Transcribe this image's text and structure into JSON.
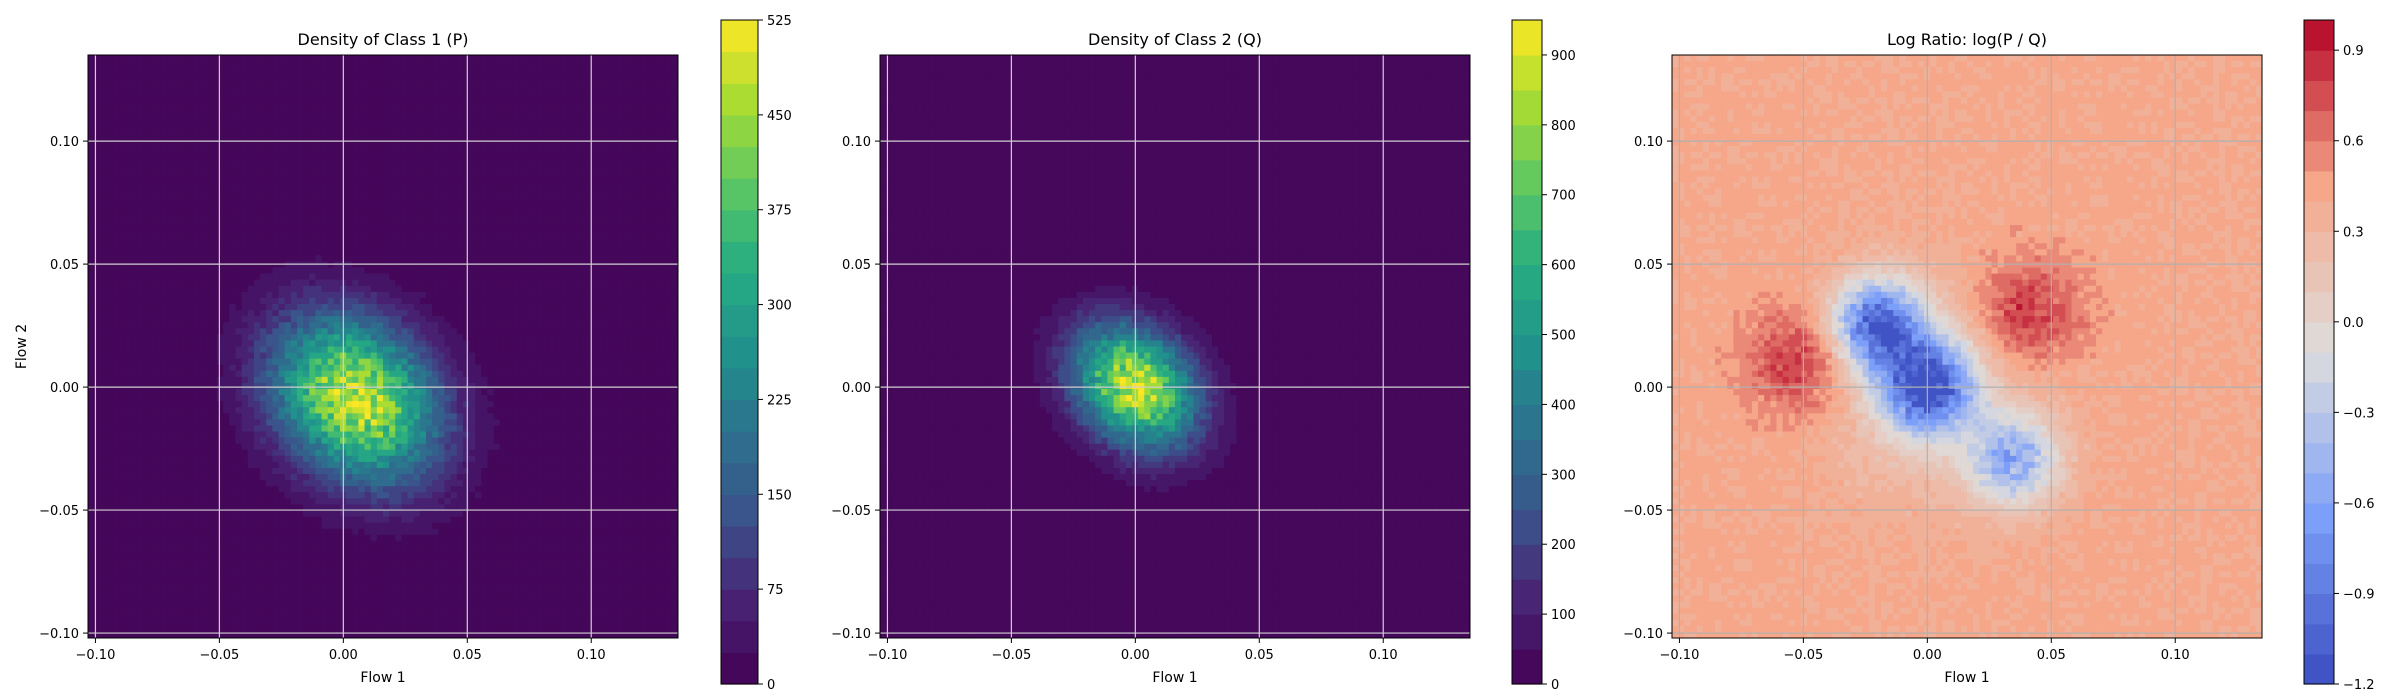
{
  "chart_data": [
    {
      "type": "heatmap",
      "subtype": "filled-contour",
      "title": "Density of Class 1 (P)",
      "xlabel": "Flow 1",
      "ylabel": "Flow 2",
      "xlim": [
        -0.103,
        0.135
      ],
      "ylim": [
        -0.102,
        0.135
      ],
      "xticks": [
        -0.1,
        -0.05,
        0.0,
        0.05,
        0.1
      ],
      "xtick_labels": [
        "−0.10",
        "−0.05",
        "0.00",
        "0.05",
        "0.10"
      ],
      "yticks": [
        -0.1,
        -0.05,
        0.0,
        0.05,
        0.1
      ],
      "ytick_labels": [
        "−0.10",
        "−0.05",
        "0.00",
        "0.05",
        "0.10"
      ],
      "grid": true,
      "colormap": "viridis",
      "colorbar": {
        "range": [
          0,
          525
        ],
        "ticks": [
          0,
          75,
          150,
          225,
          300,
          375,
          450,
          525
        ],
        "tick_labels": [
          "0",
          "75",
          "150",
          "225",
          "300",
          "375",
          "450",
          "525"
        ]
      },
      "density_center": [
        0.005,
        -0.005
      ],
      "density_peak": 525,
      "density_spread": [
        0.033,
        0.03
      ]
    },
    {
      "type": "heatmap",
      "subtype": "filled-contour",
      "title": "Density of Class 2 (Q)",
      "xlabel": "Flow 1",
      "ylabel": "",
      "xlim": [
        -0.103,
        0.135
      ],
      "ylim": [
        -0.102,
        0.135
      ],
      "xticks": [
        -0.1,
        -0.05,
        0.0,
        0.05,
        0.1
      ],
      "xtick_labels": [
        "−0.10",
        "−0.05",
        "0.00",
        "0.05",
        "0.10"
      ],
      "yticks": [
        -0.1,
        -0.05,
        0.0,
        0.05,
        0.1
      ],
      "ytick_labels": [
        "−0.10",
        "−0.05",
        "0.00",
        "0.05",
        "0.10"
      ],
      "grid": true,
      "colormap": "viridis",
      "colorbar": {
        "range": [
          0,
          950
        ],
        "ticks": [
          0,
          100,
          200,
          300,
          400,
          500,
          600,
          700,
          800,
          900
        ],
        "tick_labels": [
          "0",
          "100",
          "200",
          "300",
          "400",
          "500",
          "600",
          "700",
          "800",
          "900"
        ]
      },
      "density_center": [
        0.0,
        0.0
      ],
      "density_peak": 950,
      "density_spread": [
        0.025,
        0.022
      ]
    },
    {
      "type": "heatmap",
      "subtype": "filled-contour",
      "title": "Log Ratio: log(P / Q)",
      "xlabel": "Flow 1",
      "ylabel": "",
      "xlim": [
        -0.103,
        0.135
      ],
      "ylim": [
        -0.102,
        0.135
      ],
      "xticks": [
        -0.1,
        -0.05,
        0.0,
        0.05,
        0.1
      ],
      "xtick_labels": [
        "−0.10",
        "−0.05",
        "0.00",
        "0.05",
        "0.10"
      ],
      "yticks": [
        -0.1,
        -0.05,
        0.0,
        0.05,
        0.1
      ],
      "ytick_labels": [
        "−0.10",
        "−0.05",
        "0.00",
        "0.05",
        "0.10"
      ],
      "grid": true,
      "colormap": "coolwarm",
      "colorbar": {
        "range": [
          -1.2,
          1.0
        ],
        "ticks": [
          -1.2,
          -0.9,
          -0.6,
          -0.3,
          0.0,
          0.3,
          0.6,
          0.9
        ],
        "tick_labels": [
          "−1.2",
          "−0.9",
          "−0.6",
          "−0.3",
          "0.0",
          "0.3",
          "0.6",
          "0.9"
        ]
      },
      "negative_regions": [
        [
          -0.02,
          0.025
        ],
        [
          0.0,
          0.0
        ],
        [
          0.035,
          -0.03
        ]
      ],
      "positive_regions": [
        [
          0.04,
          0.03
        ],
        [
          -0.05,
          0.01
        ]
      ]
    }
  ]
}
